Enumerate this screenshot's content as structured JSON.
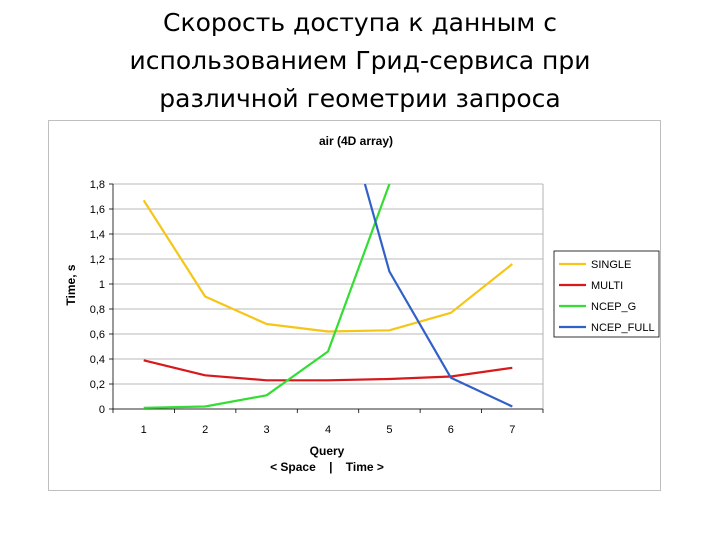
{
  "slide": {
    "title_lines": [
      "Скорость доступа к данным с",
      "использованием Грид-сервиса при",
      "различной геометрии запроса"
    ]
  },
  "chart_data": {
    "type": "line",
    "title": "air (4D array)",
    "xlabel": "Query",
    "xlabel2": "< Space    |    Time >",
    "ylabel": "Time, s",
    "x": [
      1,
      2,
      3,
      4,
      5,
      6,
      7
    ],
    "ylim": [
      0,
      1.8
    ],
    "yticks": [
      "0",
      "0,2",
      "0,4",
      "0,6",
      "0,8",
      "1",
      "1,2",
      "1,4",
      "1,6",
      "1,8"
    ],
    "grid": true,
    "legend_position": "right",
    "series": [
      {
        "name": "SINGLE",
        "color": "#f5c518",
        "values": [
          1.67,
          0.9,
          0.68,
          0.62,
          0.63,
          0.77,
          1.16
        ]
      },
      {
        "name": "MULTI",
        "color": "#d7191c",
        "values": [
          0.39,
          0.27,
          0.23,
          0.23,
          0.24,
          0.26,
          0.33
        ]
      },
      {
        "name": "NCEP_G",
        "color": "#33dd33",
        "values": [
          0.01,
          0.02,
          0.11,
          0.46,
          1.8,
          null,
          null
        ]
      },
      {
        "name": "NCEP_FULL",
        "color": "#3060c8",
        "values": [
          null,
          null,
          null,
          null,
          1.1,
          0.25,
          0.02
        ],
        "offscale_from": {
          "x": 4.6,
          "y": 1.8
        }
      }
    ]
  }
}
